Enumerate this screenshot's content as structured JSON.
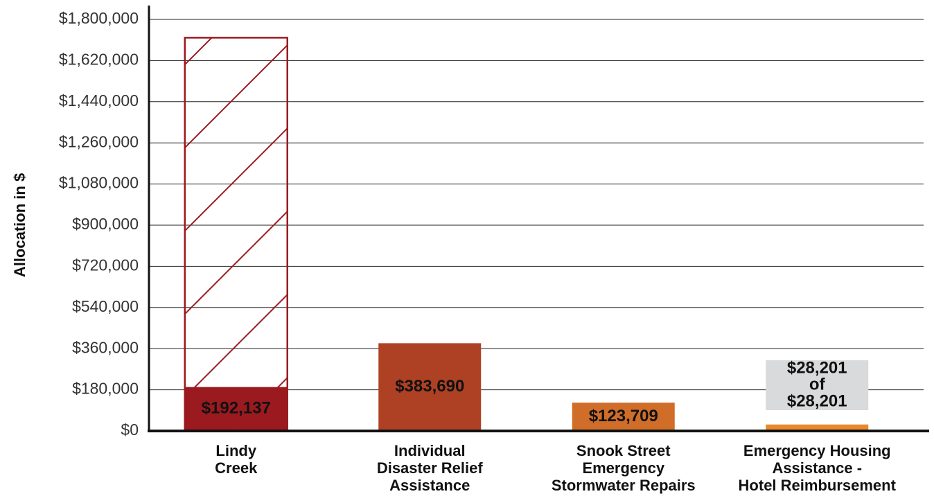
{
  "chart_data": {
    "type": "bar",
    "y_label": "Allocation in $",
    "categories": [
      [
        "Lindy",
        "Creek"
      ],
      [
        "Individual",
        "Disaster Relief",
        "Assistance"
      ],
      [
        "Snook Street",
        "Emergency",
        "Stormwater Repairs"
      ],
      [
        "Emergency Housing",
        "Assistance -",
        "Hotel Reimbursement"
      ]
    ],
    "series": [
      {
        "colors": [
          "#9b1a1f",
          "#ae4124",
          "#d06d29",
          "#e8892c"
        ],
        "values": [
          192137,
          383690,
          123709,
          28201
        ],
        "value_labels": [
          "$192,137",
          "$383,690",
          "$123,709",
          null
        ]
      },
      {
        "color": "#9b1a1f",
        "hatch": true,
        "values": [
          1720000,
          null,
          null,
          null
        ]
      }
    ],
    "annotations": [
      {
        "category": 3,
        "lines": [
          "$28,201",
          "of",
          "$28,201"
        ]
      }
    ],
    "ylim": [
      0,
      1800000
    ],
    "yticks": [
      {
        "value": 0,
        "label": "$0"
      },
      {
        "value": 180000,
        "label": "$180,000"
      },
      {
        "value": 360000,
        "label": "$360,000"
      },
      {
        "value": 540000,
        "label": "$540,000"
      },
      {
        "value": 720000,
        "label": "$720,000"
      },
      {
        "value": 900000,
        "label": "$900,000"
      },
      {
        "value": 1080000,
        "label": "$1,080,000"
      },
      {
        "value": 1260000,
        "label": "$1,260,000"
      },
      {
        "value": 1440000,
        "label": "$1,440,000"
      },
      {
        "value": 1620000,
        "label": "$1,620,000"
      },
      {
        "value": 1800000,
        "label": "$1,800,000"
      }
    ],
    "grid": true
  }
}
